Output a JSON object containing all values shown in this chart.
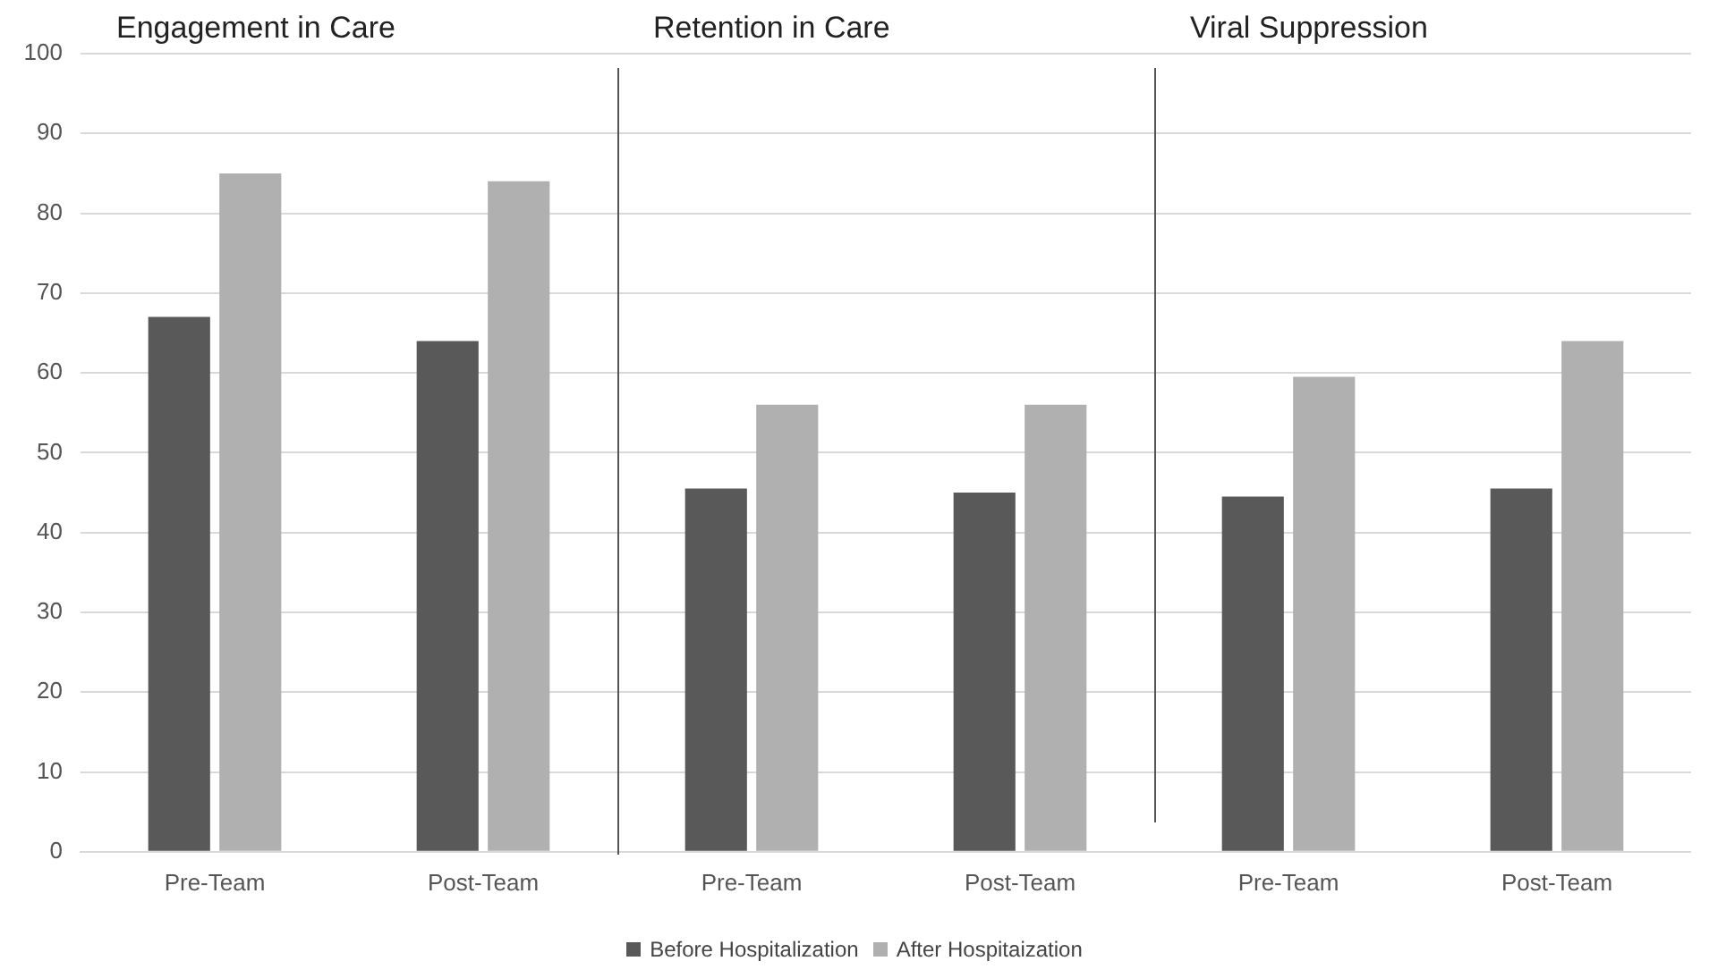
{
  "chart_data": [
    {
      "type": "bar",
      "title": "Engagement in Care",
      "categories": [
        "Pre-Team",
        "Post-Team"
      ],
      "series": [
        {
          "name": "Before Hospitalization",
          "color": "#595959",
          "values": [
            67,
            64
          ]
        },
        {
          "name": "After Hospitaization",
          "color": "#b0b0b0",
          "values": [
            85,
            84
          ]
        }
      ],
      "ylim": [
        0,
        100
      ],
      "yticks": [
        0,
        10,
        20,
        30,
        40,
        50,
        60,
        70,
        80,
        90,
        100
      ],
      "grid": "y",
      "legend": "bottom"
    },
    {
      "type": "bar",
      "title": "Retention in Care",
      "categories": [
        "Pre-Team",
        "Post-Team"
      ],
      "series": [
        {
          "color": "#595959",
          "values": [
            45.5,
            45
          ]
        },
        {
          "color": "#b0b0b0",
          "values": [
            56,
            56
          ]
        }
      ],
      "ylim": [
        0,
        100
      ],
      "yticks": [
        0,
        10,
        20,
        30,
        40,
        50,
        60,
        70,
        80,
        90,
        100
      ],
      "grid": "y",
      "tick_labels": "x"
    },
    {
      "type": "bar",
      "title": "Viral Suppression",
      "categories": [
        "Pre-Team",
        "Post-Team"
      ],
      "series": [
        {
          "color": "#595959",
          "values": [
            44.5,
            45.5
          ]
        },
        {
          "color": "#b0b0b0",
          "values": [
            59.5,
            64
          ]
        }
      ],
      "ylim": [
        0,
        100
      ],
      "yticks": [
        0,
        10,
        20,
        30,
        40,
        50,
        60,
        70,
        80,
        90,
        100
      ],
      "grid": "y",
      "tick_labels": "x"
    }
  ]
}
